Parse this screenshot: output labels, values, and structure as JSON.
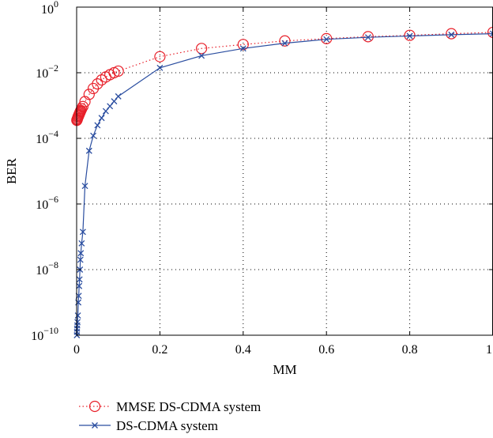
{
  "chart_data": {
    "type": "line",
    "title": "",
    "xlabel": "MM",
    "ylabel": "BER",
    "xlim": [
      0,
      1
    ],
    "ylim_exponent": [
      -10,
      0
    ],
    "y_scale": "log",
    "grid": true,
    "legend_position": "bottom-left, below axes",
    "x_ticks": [
      "0",
      "0.2",
      "0.4",
      "0.6",
      "0.8",
      "1"
    ],
    "y_ticks": [
      {
        "base": "10",
        "exp": "0"
      },
      {
        "base": "10",
        "exp": "−2"
      },
      {
        "base": "10",
        "exp": "−4"
      },
      {
        "base": "10",
        "exp": "−6"
      },
      {
        "base": "10",
        "exp": "−8"
      },
      {
        "base": "10",
        "exp": "−10"
      }
    ],
    "series": [
      {
        "name": "MMSE DS-CDMA system",
        "color": "#e8202a",
        "line_style": "dotted",
        "marker": "circle",
        "x": [
          0.0005,
          0.001,
          0.002,
          0.003,
          0.004,
          0.005,
          0.006,
          0.007,
          0.008,
          0.009,
          0.01,
          0.012,
          0.015,
          0.02,
          0.03,
          0.04,
          0.05,
          0.06,
          0.07,
          0.08,
          0.09,
          0.1,
          0.2,
          0.3,
          0.4,
          0.5,
          0.6,
          0.7,
          0.8,
          0.9,
          1.0
        ],
        "y_log10": [
          -3.45,
          -3.43,
          -3.4,
          -3.36,
          -3.33,
          -3.3,
          -3.27,
          -3.24,
          -3.21,
          -3.18,
          -3.15,
          -3.1,
          -3.03,
          -2.88,
          -2.66,
          -2.48,
          -2.34,
          -2.22,
          -2.13,
          -2.06,
          -2.0,
          -1.95,
          -1.51,
          -1.26,
          -1.14,
          -1.03,
          -0.96,
          -0.9,
          -0.86,
          -0.81,
          -0.77
        ]
      },
      {
        "name": "DS-CDMA system",
        "color": "#2b4ea0",
        "line_style": "solid",
        "marker": "x",
        "x": [
          0.0005,
          0.0008,
          0.001,
          0.0015,
          0.002,
          0.003,
          0.004,
          0.005,
          0.006,
          0.007,
          0.008,
          0.009,
          0.01,
          0.012,
          0.015,
          0.02,
          0.03,
          0.04,
          0.05,
          0.06,
          0.07,
          0.08,
          0.09,
          0.1,
          0.2,
          0.3,
          0.4,
          0.5,
          0.6,
          0.7,
          0.8,
          0.9,
          1.0
        ],
        "y_log10": [
          -10.0,
          -9.9,
          -9.8,
          -9.7,
          -9.6,
          -9.4,
          -9.0,
          -8.8,
          -8.5,
          -8.3,
          -8.0,
          -7.7,
          -7.5,
          -7.2,
          -6.85,
          -5.45,
          -4.38,
          -3.92,
          -3.6,
          -3.38,
          -3.17,
          -3.02,
          -2.87,
          -2.72,
          -1.85,
          -1.48,
          -1.26,
          -1.1,
          -0.98,
          -0.92,
          -0.88,
          -0.84,
          -0.81
        ]
      }
    ]
  }
}
